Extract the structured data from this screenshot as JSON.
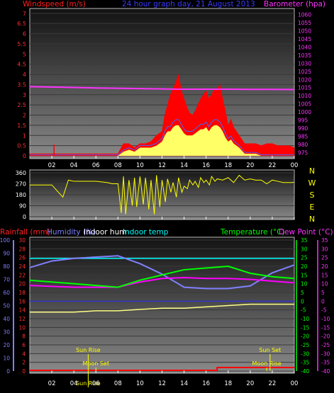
{
  "title": "24 hour graph day, 21 August 2013",
  "x_ticks": [
    "02",
    "04",
    "06",
    "08",
    "10",
    "12",
    "14",
    "16",
    "18",
    "20",
    "22",
    "00"
  ],
  "colors": {
    "wind": "#ff0000",
    "gust_fill": "#ff0000",
    "wind_fill": "#ffff66",
    "wind_avg": "#4466ff",
    "pressure": "#ff33ff",
    "direction": "#ffff00",
    "rain": "#ff0000",
    "humidity": "#8080ff",
    "indoor_hum": "#ffffff",
    "indoor_temp": "#00ffff",
    "temperature": "#ff00ff",
    "dew_point": "#00ff00",
    "sun": "#ffff00"
  },
  "chart_data": [
    {
      "type": "area",
      "name": "wind-pressure",
      "left_label": "Windspeed (m/s)",
      "right_label": "Barometer (hpa)",
      "y_ticks": [
        "0",
        "0.5",
        "1",
        "1.5",
        "2",
        "2.5",
        "3",
        "3.5",
        "4",
        "4.5",
        "5",
        "5.5",
        "6",
        "6.5",
        "7"
      ],
      "y_ticks_right": [
        "975",
        "980",
        "985",
        "990",
        "995",
        "1000",
        "1005",
        "1010",
        "1015",
        "1020",
        "1025",
        "1030",
        "1035",
        "1040",
        "1045",
        "1050",
        "1055",
        "1060"
      ],
      "ylim": [
        0,
        7.1
      ],
      "ylim_right": [
        973,
        1062
      ],
      "gust_x": [
        0,
        1,
        2,
        3,
        4,
        5,
        6,
        7,
        7.5,
        8,
        8.5,
        9,
        9.5,
        10,
        10.5,
        11,
        11.5,
        12,
        12.25,
        12.5,
        12.75,
        13,
        13.25,
        13.5,
        13.75,
        14,
        14.25,
        14.5,
        14.75,
        15,
        15.25,
        15.5,
        15.75,
        16,
        16.25,
        16.5,
        16.75,
        17,
        17.25,
        17.5,
        17.75,
        18,
        18.25,
        18.5,
        18.75,
        19,
        19.5,
        20,
        20.5,
        21,
        21.5,
        22,
        22.5,
        23,
        23.5,
        24
      ],
      "gust_y": [
        0.1,
        0.1,
        0.1,
        0.1,
        0.1,
        0.1,
        0.1,
        0.1,
        0.1,
        0.1,
        0.6,
        0.6,
        0.4,
        0.6,
        0.6,
        0.7,
        1,
        1.2,
        2,
        2.5,
        3,
        3.3,
        3.6,
        4,
        3.2,
        2.8,
        2.4,
        2.1,
        2,
        2.2,
        2.5,
        2.8,
        3,
        3.2,
        2.8,
        3,
        3.3,
        3.3,
        3.5,
        2.8,
        2.2,
        1.5,
        1.8,
        1.4,
        1.2,
        1,
        0.6,
        0.6,
        0.6,
        0.5,
        0.6,
        0.6,
        0.5,
        0.5,
        0.5,
        0.4
      ],
      "wind_y": [
        0,
        0,
        0,
        0,
        0,
        0,
        0,
        0,
        0,
        0,
        0.2,
        0.3,
        0.2,
        0.4,
        0.4,
        0.4,
        0.5,
        0.7,
        1,
        1.2,
        1.2,
        1.4,
        1.5,
        1.5,
        1.3,
        1.1,
        1,
        1,
        1,
        1.1,
        1.2,
        1.3,
        1.3,
        1.4,
        1.2,
        1.4,
        1.5,
        1.5,
        1.4,
        1.2,
        0.9,
        0.7,
        0.8,
        0.6,
        0.5,
        0.4,
        0.1,
        0.1,
        0.1,
        0,
        0,
        0,
        0,
        0,
        0,
        0
      ],
      "spike_x": 2.2,
      "spike_y": 0.55,
      "pressure_x": [
        0,
        2,
        4,
        6,
        8,
        10,
        12,
        14,
        16,
        18,
        20,
        22,
        24
      ],
      "pressure_y": [
        1015.6,
        1015.4,
        1015.1,
        1014.8,
        1014.6,
        1014.4,
        1014.2,
        1014.0,
        1014.0,
        1014.0,
        1013.9,
        1013.9,
        1013.8
      ]
    },
    {
      "type": "line",
      "name": "wind-direction",
      "y_ticks": [
        "0",
        "90",
        "180",
        "270",
        "360"
      ],
      "compass": [
        "N",
        "W",
        "S",
        "E",
        "N"
      ],
      "ylim": [
        0,
        360
      ],
      "x": [
        0,
        1,
        2,
        3,
        3.5,
        4,
        6,
        7,
        7.5,
        8,
        8.3,
        8.5,
        8.7,
        9,
        9.3,
        9.5,
        9.7,
        10,
        10.3,
        10.5,
        10.8,
        11,
        11.3,
        11.5,
        11.8,
        12,
        12.3,
        12.5,
        12.8,
        13,
        13.3,
        13.5,
        13.8,
        14,
        14.3,
        14.5,
        14.8,
        15,
        15.3,
        15.5,
        15.8,
        16,
        16.3,
        16.5,
        16.8,
        17,
        17.5,
        18,
        18.5,
        19,
        19.5,
        20,
        20.5,
        21,
        21.5,
        22,
        22.5,
        23,
        23.5,
        24
      ],
      "y": [
        260,
        260,
        260,
        160,
        300,
        290,
        290,
        280,
        270,
        270,
        30,
        330,
        20,
        300,
        90,
        320,
        80,
        330,
        100,
        320,
        60,
        300,
        20,
        340,
        80,
        300,
        120,
        310,
        200,
        280,
        160,
        320,
        200,
        250,
        230,
        300,
        260,
        290,
        240,
        320,
        280,
        300,
        260,
        330,
        290,
        310,
        300,
        320,
        280,
        340,
        300,
        310,
        300,
        300,
        270,
        300,
        290,
        280,
        280,
        280
      ]
    },
    {
      "type": "line",
      "name": "temp-humidity-rain",
      "labels": {
        "rain": "Rainfall (mm)",
        "humidity": "Humidity (%)",
        "indoor_hum": "Indoor hum",
        "indoor_temp": "Indoor temp",
        "temperature": "Temperature (°C)",
        "dew_point": "Dew Point (°C)"
      },
      "y_ticks_hum": [
        "0",
        "10",
        "20",
        "30",
        "40",
        "50",
        "60",
        "70",
        "80",
        "90",
        "100"
      ],
      "y_ticks_rain": [
        "0",
        "2",
        "4",
        "6",
        "8",
        "10",
        "12",
        "14",
        "16",
        "18",
        "20",
        "22",
        "24",
        "26",
        "28",
        "30"
      ],
      "y_ticks_temp": [
        "-40",
        "-35",
        "-30",
        "-25",
        "-20",
        "-15",
        "-10",
        "-5",
        "0",
        "5",
        "10",
        "15",
        "20",
        "25",
        "30",
        "35"
      ],
      "ylim_hum": [
        0,
        100
      ],
      "ylim_temp": [
        -40,
        35
      ],
      "x": [
        0,
        2,
        4,
        6,
        8,
        10,
        12,
        14,
        16,
        18,
        20,
        22,
        24
      ],
      "humidity": [
        79,
        84,
        86,
        87,
        88,
        82,
        74,
        64,
        63,
        63,
        65,
        75,
        81
      ],
      "indoor_hum": [
        45,
        45,
        45,
        46,
        46,
        47,
        48,
        48,
        49,
        50,
        51,
        51,
        51
      ],
      "indoor_temp": [
        24.5,
        24.5,
        24.5,
        24.5,
        24.5,
        24.5,
        24.5,
        24.5,
        24.5,
        24.5,
        24.5,
        24.5,
        24.5
      ],
      "temperature": [
        9,
        8.5,
        8,
        8,
        8,
        11,
        13,
        13.5,
        13,
        13,
        12.5,
        11.5,
        10.5
      ],
      "dew_point": [
        12,
        11,
        10,
        9,
        8,
        12,
        15,
        18,
        19,
        20,
        16,
        14,
        13
      ],
      "rain_x": [
        0,
        17,
        24
      ],
      "rain_y": [
        0,
        0.2,
        0.3
      ],
      "events": [
        {
          "label": "Sun Rise",
          "x": 5.3,
          "row": 0
        },
        {
          "label": "Moon Set",
          "x": 6.0,
          "row": 1
        },
        {
          "label": "Sun Rise",
          "x": 5.3,
          "row": 2
        },
        {
          "label": "Sun Set",
          "x": 21.8,
          "row": 0
        },
        {
          "label": "Moon Rise",
          "x": 21.5,
          "row": 1
        }
      ]
    }
  ]
}
